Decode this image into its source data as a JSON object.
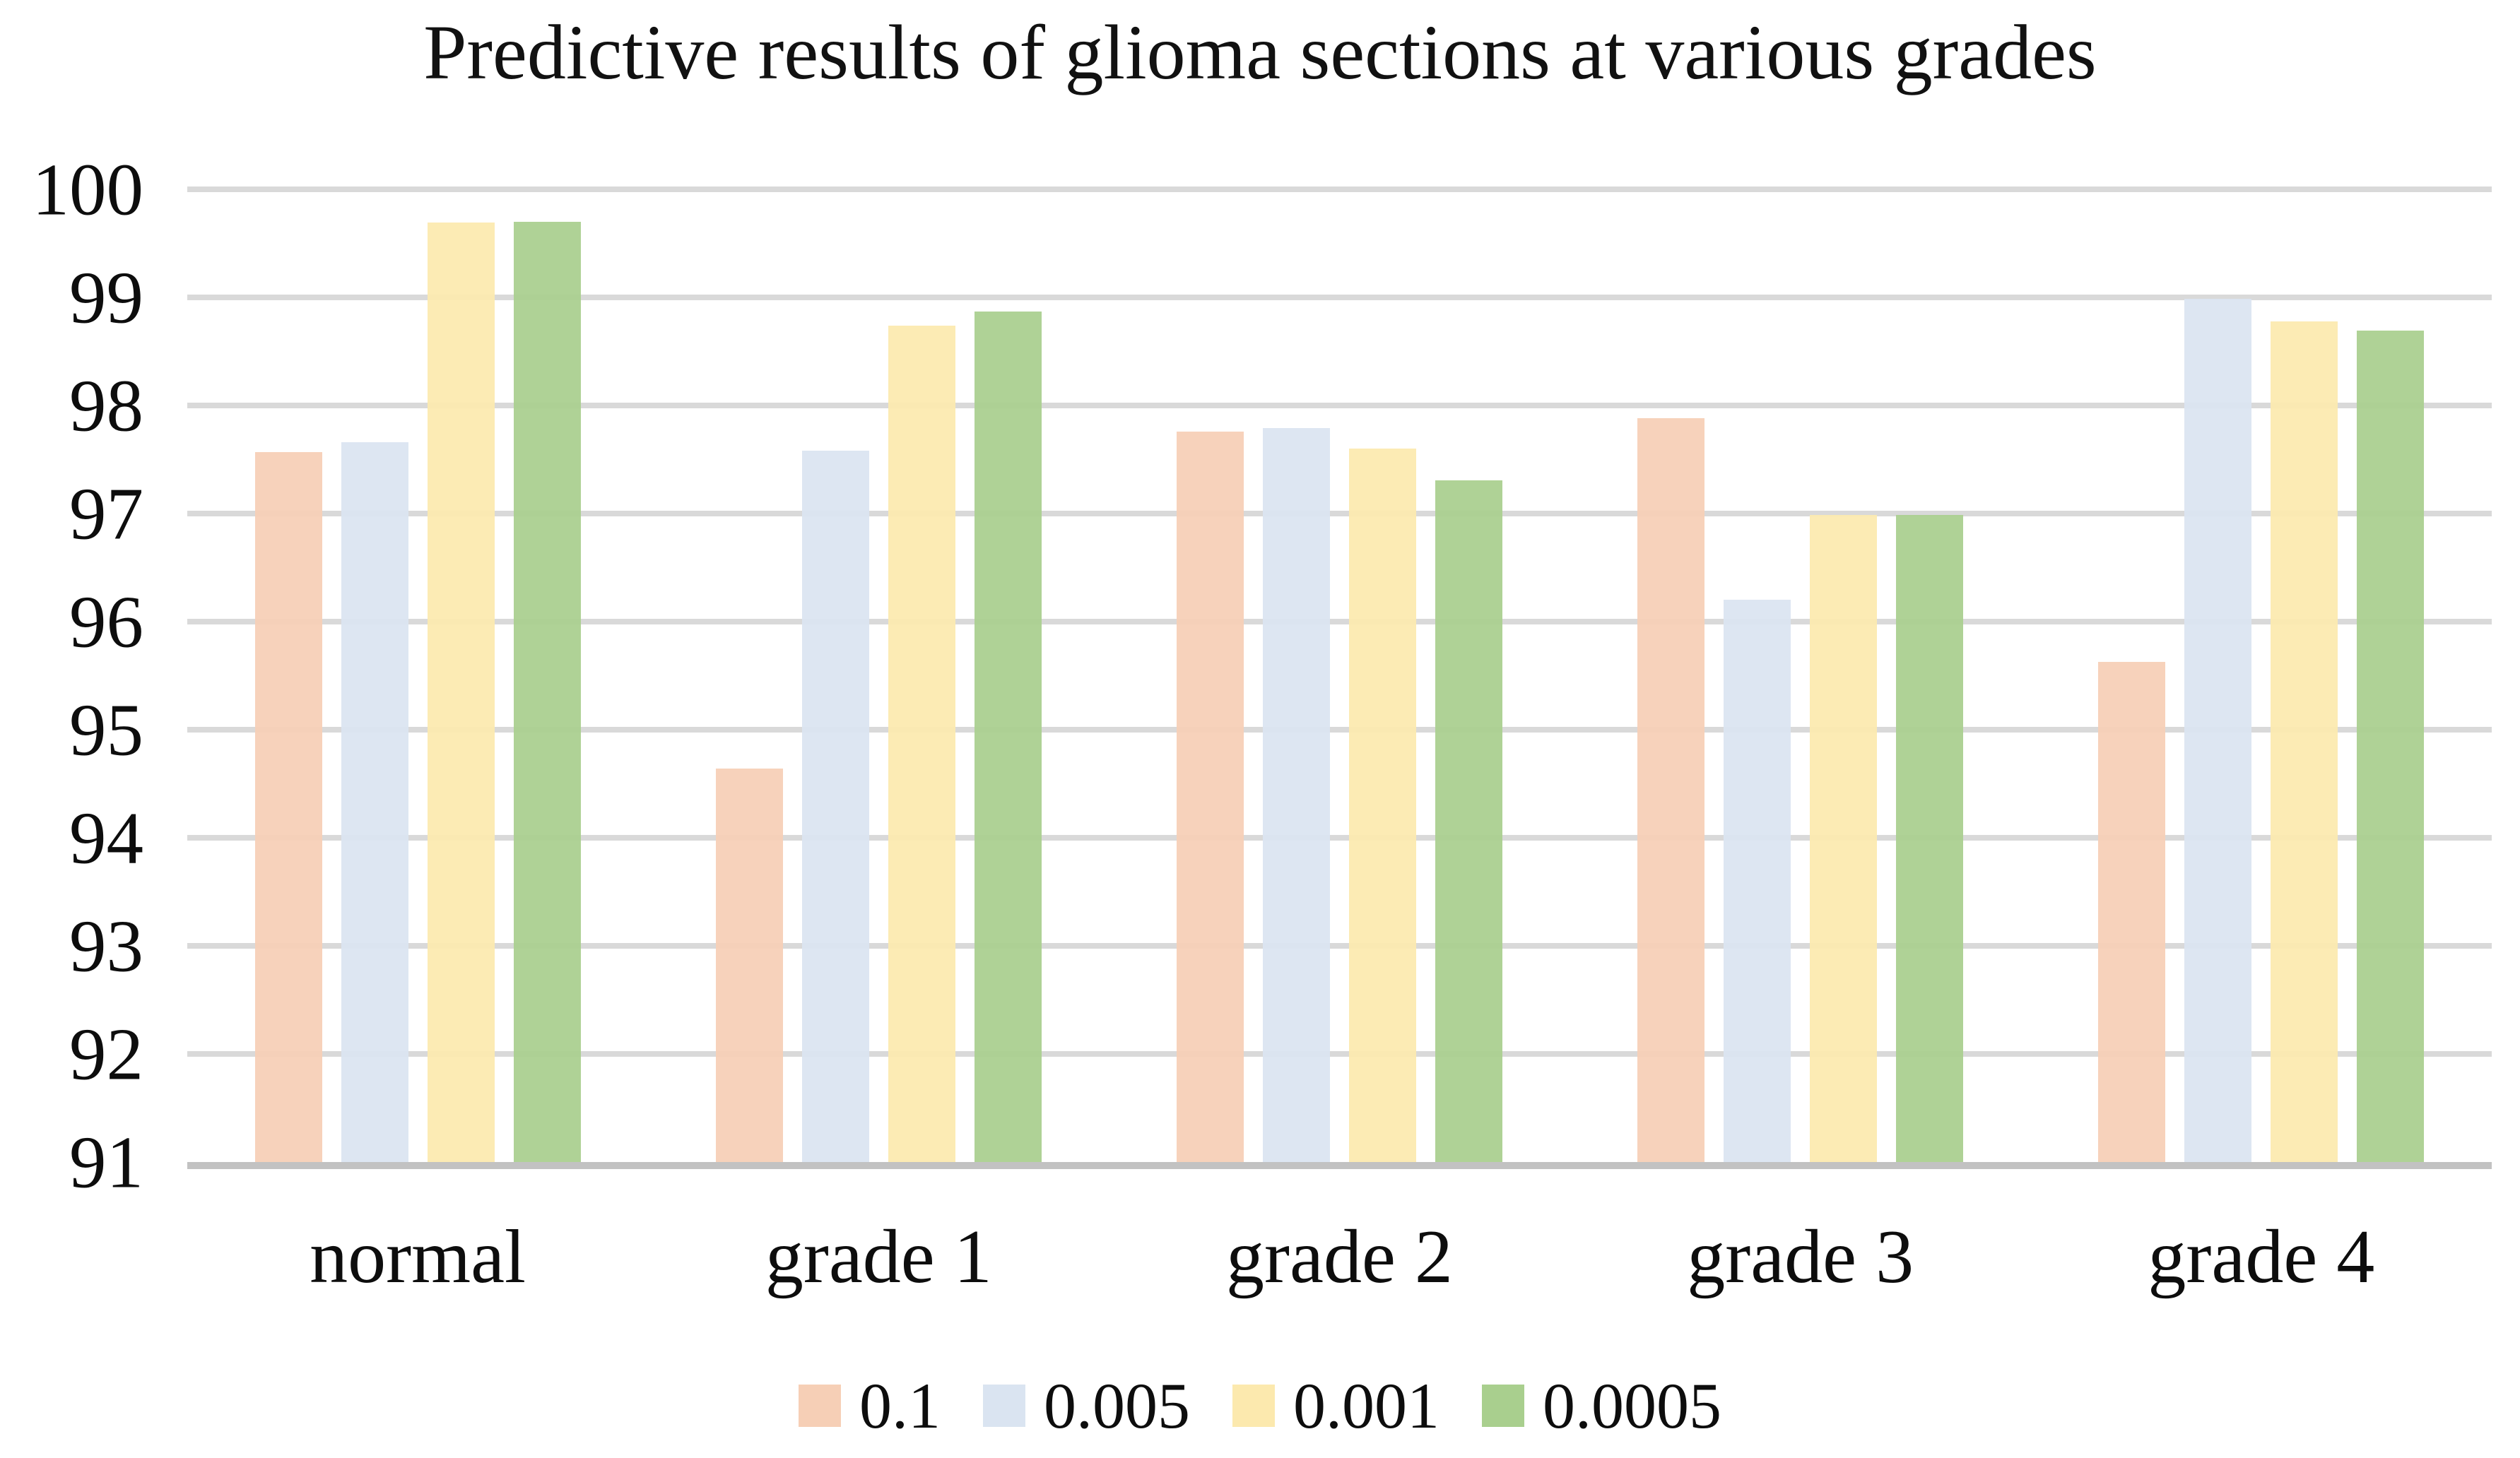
{
  "title": "Predictive results of glioma sections at various grades",
  "chart_data": {
    "type": "bar",
    "title": "Predictive results of glioma sections at various grades",
    "categories": [
      "normal",
      "grade 1",
      "grade 2",
      "grade 3",
      "grade 4"
    ],
    "series": [
      {
        "name": "0.1",
        "color": "#f6cfb6",
        "values": [
          97.57,
          94.64,
          97.76,
          97.88,
          95.63
        ]
      },
      {
        "name": "0.005",
        "color": "#dae4f1",
        "values": [
          97.66,
          97.58,
          97.79,
          96.2,
          98.99
        ]
      },
      {
        "name": "0.001",
        "color": "#fce9ae",
        "values": [
          99.69,
          98.74,
          97.6,
          96.99,
          98.78
        ]
      },
      {
        "name": "0.0005",
        "color": "#a9cf8e",
        "values": [
          99.7,
          98.87,
          97.31,
          96.99,
          98.69
        ]
      }
    ],
    "xlabel": "",
    "ylabel": "",
    "ylim": [
      91,
      100
    ],
    "yticks": [
      100,
      99,
      98,
      97,
      96,
      95,
      94,
      93,
      92,
      91
    ],
    "grid": true,
    "gridline_color": "#d9d9d9",
    "axis_line_color": "#c2c2c2",
    "legend_position": "bottom"
  }
}
